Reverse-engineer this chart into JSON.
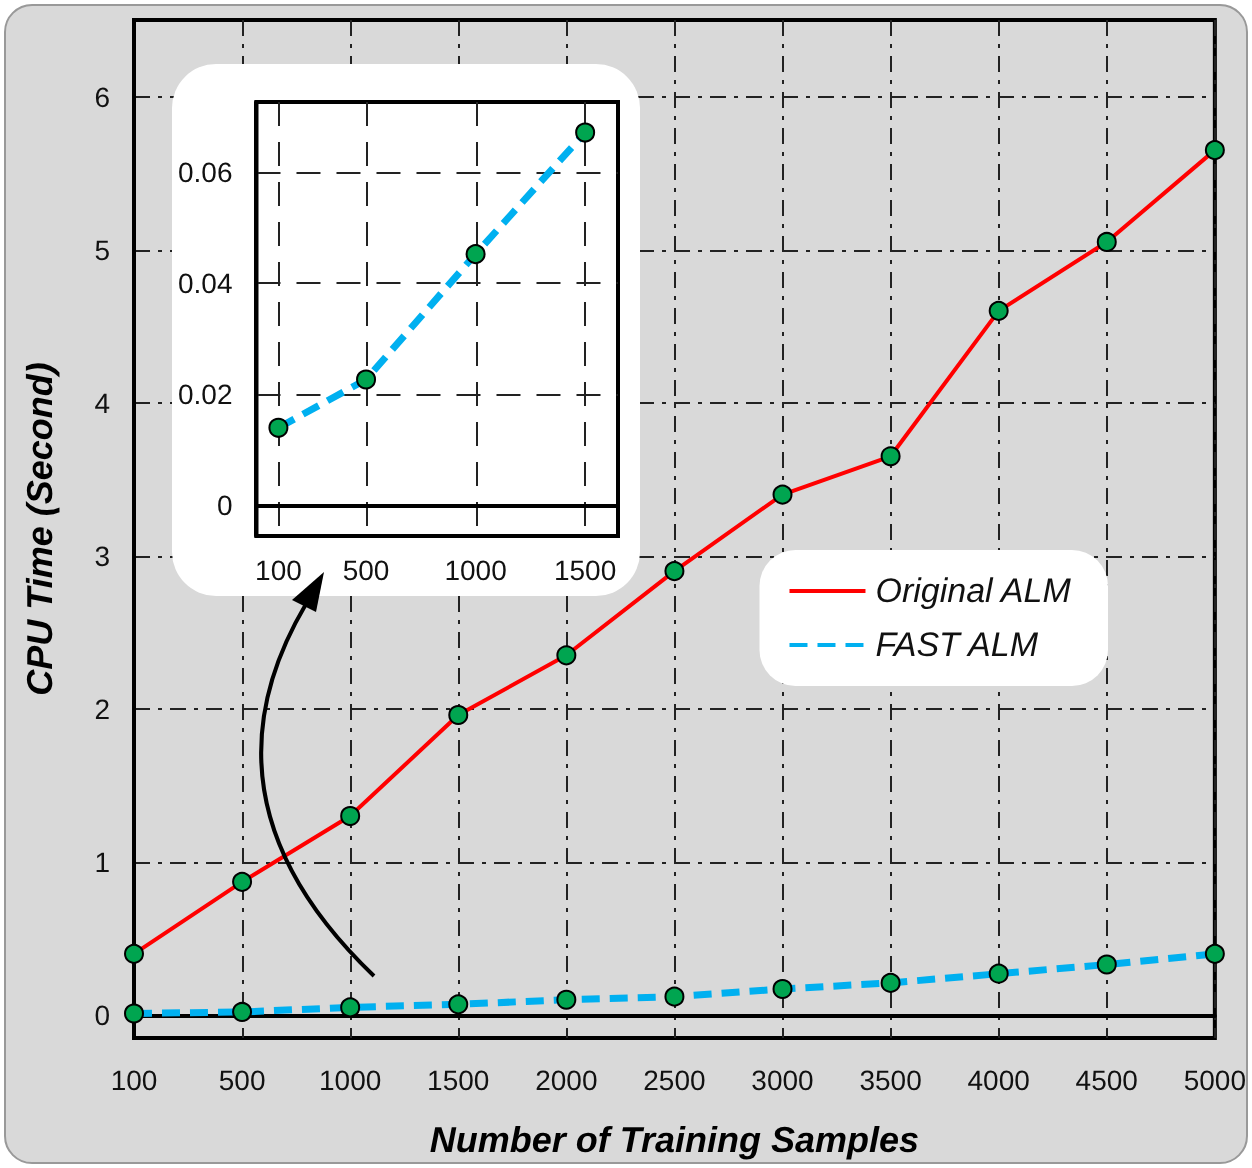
{
  "chart_data": [
    {
      "type": "line",
      "xlabel": "Number of Training Samples",
      "ylabel": "CPU Time (Second)",
      "categories": [
        "100",
        "500",
        "1000",
        "1500",
        "2000",
        "2500",
        "3000",
        "3500",
        "4000",
        "4500",
        "5000"
      ],
      "series": [
        {
          "name": "Original ALM",
          "color": "#ff0000",
          "line_style": "solid",
          "values": [
            0.4,
            0.87,
            1.3,
            1.96,
            2.35,
            2.9,
            3.4,
            3.65,
            4.6,
            5.05,
            5.65
          ]
        },
        {
          "name": "FAST ALM",
          "color": "#00b0f0",
          "line_style": "dashed",
          "values": [
            0.01,
            0.02,
            0.05,
            0.07,
            0.1,
            0.12,
            0.17,
            0.21,
            0.27,
            0.33,
            0.4
          ]
        }
      ],
      "ylim": [
        -0.15,
        6.5
      ],
      "yticks": [
        0,
        1,
        2,
        3,
        4,
        5,
        6
      ],
      "grid": true,
      "legend": "right",
      "marker": "circle"
    },
    {
      "type": "line",
      "x": [
        100,
        500,
        1000,
        1500
      ],
      "series": [
        {
          "color": "#00b0f0",
          "line_style": "dashed",
          "values": [
            0.014,
            0.0227,
            0.0453,
            0.0672
          ]
        }
      ],
      "xlim": [
        0,
        1650
      ],
      "xticks": [
        100,
        500,
        1000,
        1500
      ],
      "ylim": [
        -0.0055,
        0.0727
      ],
      "yticks": [
        0,
        0.02,
        0.04,
        0.06
      ],
      "grid": true,
      "marker": "circle"
    }
  ]
}
